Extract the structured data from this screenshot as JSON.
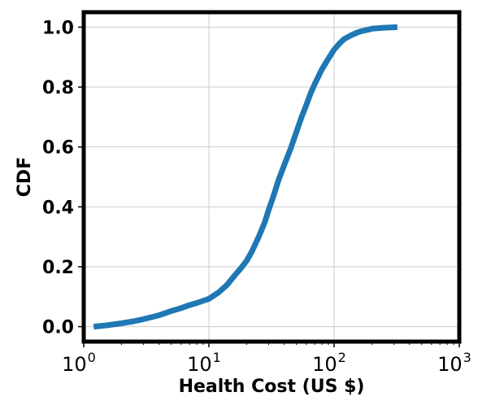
{
  "chart_data": {
    "type": "line",
    "title": "",
    "xlabel": "Health Cost (US $)",
    "ylabel": "CDF",
    "x_scale": "log",
    "xlim": [
      1,
      1000
    ],
    "ylim": [
      -0.05,
      1.05
    ],
    "x_ticks": [
      {
        "value": 1,
        "base": "10",
        "exp": "0"
      },
      {
        "value": 10,
        "base": "10",
        "exp": "1"
      },
      {
        "value": 100,
        "base": "10",
        "exp": "2"
      },
      {
        "value": 1000,
        "base": "10",
        "exp": "3"
      }
    ],
    "y_ticks": [
      {
        "value": 0.0,
        "label": "0.0"
      },
      {
        "value": 0.2,
        "label": "0.2"
      },
      {
        "value": 0.4,
        "label": "0.4"
      },
      {
        "value": 0.6,
        "label": "0.6"
      },
      {
        "value": 0.8,
        "label": "0.8"
      },
      {
        "value": 1.0,
        "label": "1.0"
      }
    ],
    "grid": true,
    "series": [
      {
        "color": "#1f77b4",
        "x": [
          1.2,
          1.5,
          2,
          2.5,
          3,
          4,
          5,
          6,
          7,
          8,
          10,
          12,
          14,
          16,
          18,
          20,
          22,
          25,
          28,
          30,
          33,
          36,
          40,
          45,
          50,
          55,
          60,
          65,
          70,
          80,
          90,
          100,
          110,
          120,
          140,
          160,
          180,
          200,
          250,
          320
        ],
        "y": [
          0.0,
          0.004,
          0.011,
          0.018,
          0.025,
          0.038,
          0.052,
          0.062,
          0.072,
          0.079,
          0.093,
          0.115,
          0.14,
          0.17,
          0.195,
          0.22,
          0.25,
          0.3,
          0.35,
          0.39,
          0.44,
          0.49,
          0.54,
          0.595,
          0.65,
          0.7,
          0.74,
          0.78,
          0.81,
          0.86,
          0.895,
          0.925,
          0.945,
          0.96,
          0.975,
          0.985,
          0.99,
          0.995,
          0.998,
          1.0
        ]
      }
    ]
  }
}
